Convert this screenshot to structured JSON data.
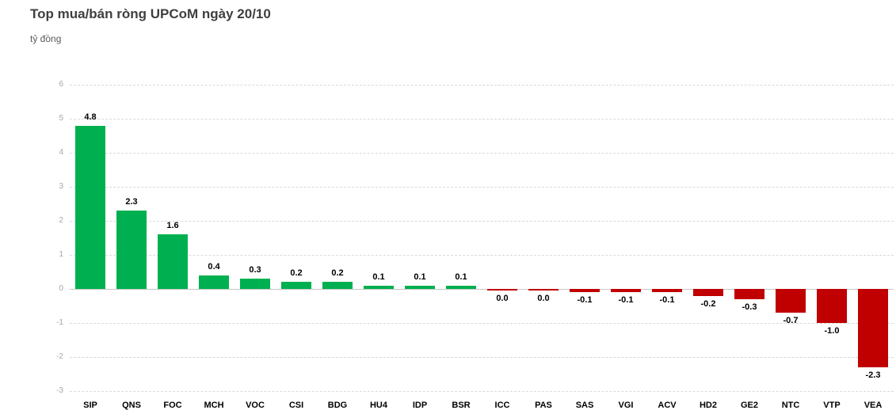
{
  "header": {
    "title": "Top mua/bán ròng UPCoM ngày 20/10",
    "unit_label": "tỷ đồng"
  },
  "chart_data": {
    "type": "bar",
    "title": "Top mua/bán ròng UPCoM ngày 20/10",
    "ylabel": "tỷ đồng",
    "xlabel": "",
    "ylim": [
      -3,
      6
    ],
    "yticks": [
      6,
      5,
      4,
      3,
      2,
      1,
      0,
      -1,
      -2,
      -3
    ],
    "grid": true,
    "legend": "none",
    "categories": [
      "SIP",
      "QNS",
      "FOC",
      "MCH",
      "VOC",
      "CSI",
      "BDG",
      "HU4",
      "IDP",
      "BSR",
      "ICC",
      "PAS",
      "SAS",
      "VGI",
      "ACV",
      "HD2",
      "GE2",
      "NTC",
      "VTP",
      "VEA"
    ],
    "values": [
      4.8,
      2.3,
      1.6,
      0.4,
      0.3,
      0.2,
      0.2,
      0.1,
      0.1,
      0.1,
      0.0,
      0.0,
      -0.1,
      -0.1,
      -0.1,
      -0.2,
      -0.3,
      -0.7,
      -1.0,
      -2.3
    ],
    "value_labels": [
      "4.8",
      "2.3",
      "1.6",
      "0.4",
      "0.3",
      "0.2",
      "0.2",
      "0.1",
      "0.1",
      "0.1",
      "0.0",
      "0.0",
      "-0.1",
      "-0.1",
      "-0.1",
      "-0.2",
      "-0.3",
      "-0.7",
      "-1.0",
      "-2.3"
    ],
    "bar_directions": [
      "pos",
      "pos",
      "pos",
      "pos",
      "pos",
      "pos",
      "pos",
      "pos",
      "pos",
      "pos",
      "neg",
      "neg",
      "neg",
      "neg",
      "neg",
      "neg",
      "neg",
      "neg",
      "neg",
      "neg"
    ],
    "colors": {
      "positive": "#00B050",
      "negative": "#C00000",
      "title": "#3f3f3f",
      "axis_text": "#a6a6a6",
      "gridline": "#d9d9d9"
    }
  }
}
